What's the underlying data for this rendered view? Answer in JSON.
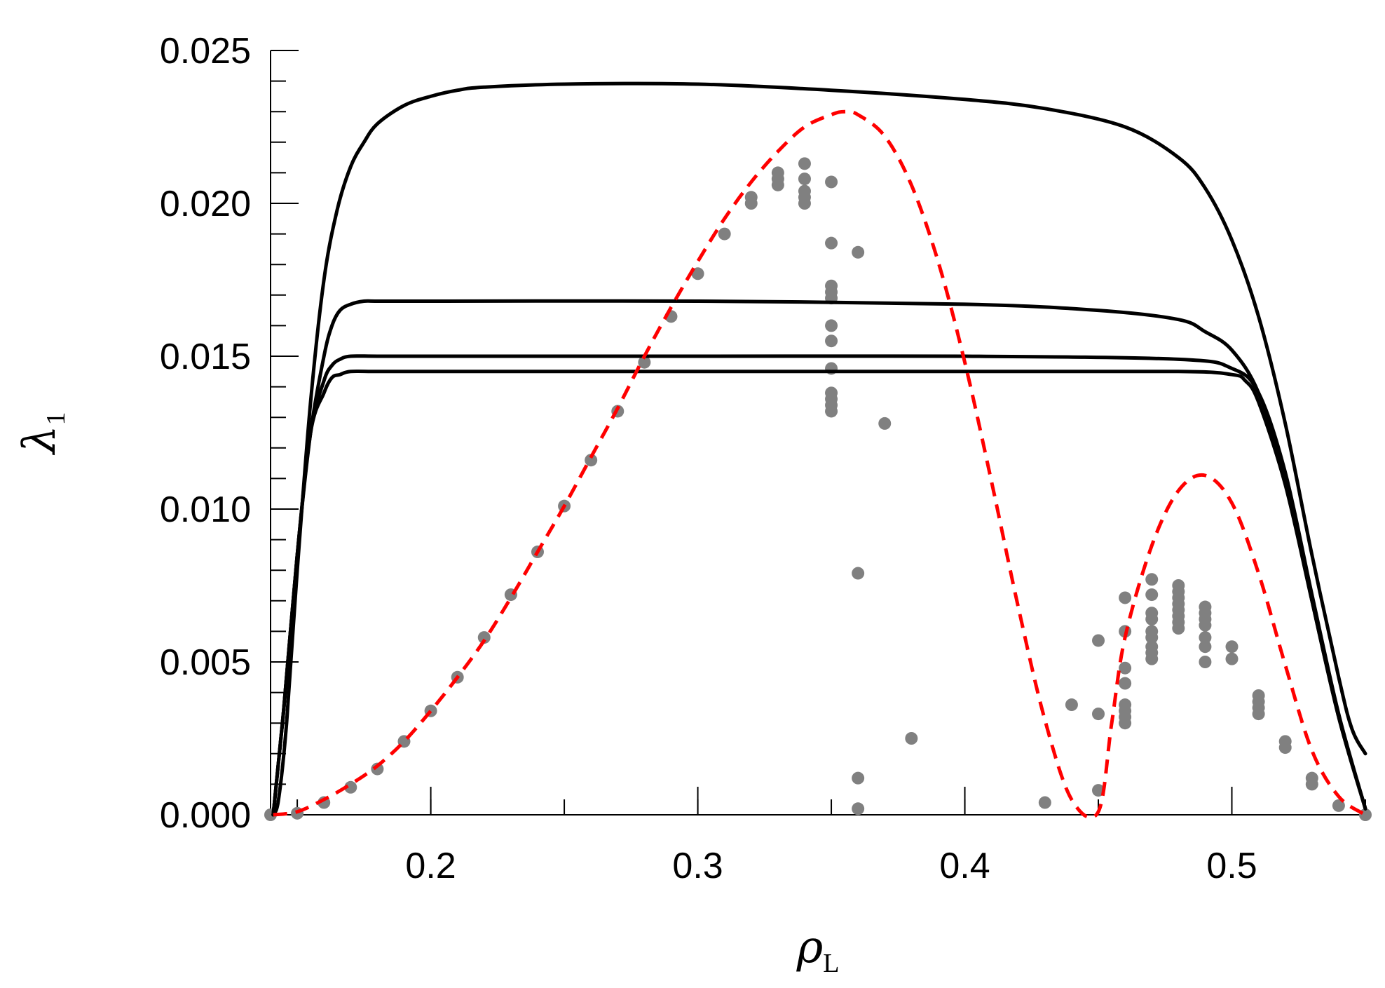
{
  "chart_data": {
    "type": "line",
    "title": "",
    "xlabel": "ρ",
    "xlabel_sub": "L",
    "ylabel": "λ",
    "ylabel_sub": "1",
    "xlim": [
      0.14,
      0.55
    ],
    "ylim": [
      0.0,
      0.025
    ],
    "x_ticks": [
      0.2,
      0.3,
      0.4,
      0.5
    ],
    "x_tick_labels": [
      "0.2",
      "0.3",
      "0.4",
      "0.5"
    ],
    "y_ticks": [
      0.0,
      0.005,
      0.01,
      0.015,
      0.02,
      0.025
    ],
    "y_tick_labels": [
      "0.000",
      "0.005",
      "0.010",
      "0.015",
      "0.020",
      "0.025"
    ],
    "grid": false,
    "series": [
      {
        "style": "solid-black",
        "x": [
          0.141,
          0.143,
          0.146,
          0.15,
          0.155,
          0.16,
          0.165,
          0.17,
          0.175,
          0.18,
          0.19,
          0.2,
          0.21,
          0.22,
          0.25,
          0.3,
          0.35,
          0.4,
          0.43,
          0.46,
          0.48,
          0.49,
          0.5,
          0.51,
          0.52,
          0.53,
          0.54,
          0.545,
          0.55
        ],
        "y": [
          0.0,
          0.0005,
          0.003,
          0.008,
          0.0135,
          0.0175,
          0.0198,
          0.0212,
          0.022,
          0.0226,
          0.0232,
          0.0235,
          0.0237,
          0.0238,
          0.0239,
          0.0239,
          0.0237,
          0.0234,
          0.0231,
          0.0225,
          0.0215,
          0.0205,
          0.0188,
          0.0163,
          0.0128,
          0.0085,
          0.0045,
          0.0028,
          0.002
        ]
      },
      {
        "style": "solid-black",
        "x": [
          0.141,
          0.145,
          0.15,
          0.155,
          0.16,
          0.163,
          0.166,
          0.17,
          0.175,
          0.18,
          0.2,
          0.3,
          0.4,
          0.45,
          0.48,
          0.49,
          0.5,
          0.51,
          0.52,
          0.53,
          0.54,
          0.55
        ],
        "y": [
          0.0,
          0.0035,
          0.0085,
          0.0125,
          0.015,
          0.016,
          0.0165,
          0.0167,
          0.0168,
          0.0168,
          0.0168,
          0.0168,
          0.0167,
          0.0165,
          0.0162,
          0.0158,
          0.0152,
          0.0138,
          0.011,
          0.007,
          0.0032,
          0.0002
        ]
      },
      {
        "style": "solid-black",
        "x": [
          0.141,
          0.145,
          0.15,
          0.155,
          0.16,
          0.163,
          0.166,
          0.17,
          0.18,
          0.2,
          0.3,
          0.4,
          0.48,
          0.5,
          0.51,
          0.52,
          0.53,
          0.54,
          0.55
        ],
        "y": [
          0.0,
          0.0035,
          0.0085,
          0.0125,
          0.0142,
          0.0147,
          0.0149,
          0.015,
          0.015,
          0.015,
          0.015,
          0.015,
          0.0149,
          0.0146,
          0.0138,
          0.0112,
          0.0072,
          0.0033,
          0.0002
        ]
      },
      {
        "style": "solid-black",
        "x": [
          0.141,
          0.145,
          0.15,
          0.155,
          0.16,
          0.163,
          0.166,
          0.17,
          0.18,
          0.2,
          0.3,
          0.4,
          0.48,
          0.5,
          0.505,
          0.51,
          0.52,
          0.53,
          0.54,
          0.55
        ],
        "y": [
          0.0,
          0.0035,
          0.0085,
          0.0125,
          0.0138,
          0.0143,
          0.0144,
          0.0145,
          0.0145,
          0.0145,
          0.0145,
          0.0145,
          0.0145,
          0.0144,
          0.0142,
          0.0135,
          0.0108,
          0.007,
          0.0032,
          0.0002
        ]
      },
      {
        "style": "dashed-red",
        "x": [
          0.141,
          0.15,
          0.16,
          0.17,
          0.18,
          0.19,
          0.2,
          0.21,
          0.22,
          0.23,
          0.24,
          0.25,
          0.26,
          0.27,
          0.28,
          0.29,
          0.3,
          0.31,
          0.32,
          0.33,
          0.34,
          0.35,
          0.355,
          0.36,
          0.37,
          0.38,
          0.39,
          0.4,
          0.41,
          0.42,
          0.43,
          0.44,
          0.45,
          0.455,
          0.46,
          0.47,
          0.48,
          0.49,
          0.5,
          0.51,
          0.52,
          0.53,
          0.54,
          0.55
        ],
        "y": [
          0.0,
          0.0001,
          0.0005,
          0.001,
          0.0016,
          0.0024,
          0.0034,
          0.0045,
          0.0057,
          0.0071,
          0.0086,
          0.0101,
          0.0117,
          0.0133,
          0.015,
          0.0166,
          0.0181,
          0.0195,
          0.0207,
          0.0217,
          0.0225,
          0.0229,
          0.023,
          0.0229,
          0.0222,
          0.0206,
          0.0181,
          0.0148,
          0.0109,
          0.0068,
          0.0031,
          0.0005,
          0.0001,
          0.003,
          0.0058,
          0.0088,
          0.0106,
          0.0111,
          0.0102,
          0.0079,
          0.0049,
          0.0021,
          0.0006,
          0.0
        ]
      }
    ],
    "scatter": {
      "color": "#808080",
      "points": [
        [
          0.14,
          0.0
        ],
        [
          0.15,
          5e-05
        ],
        [
          0.16,
          0.0004
        ],
        [
          0.17,
          0.0009
        ],
        [
          0.18,
          0.0015
        ],
        [
          0.19,
          0.0024
        ],
        [
          0.2,
          0.0034
        ],
        [
          0.21,
          0.0045
        ],
        [
          0.22,
          0.0058
        ],
        [
          0.23,
          0.0072
        ],
        [
          0.24,
          0.0086
        ],
        [
          0.25,
          0.0101
        ],
        [
          0.26,
          0.0116
        ],
        [
          0.27,
          0.0132
        ],
        [
          0.28,
          0.0148
        ],
        [
          0.29,
          0.0163
        ],
        [
          0.3,
          0.0177
        ],
        [
          0.31,
          0.019
        ],
        [
          0.32,
          0.02
        ],
        [
          0.32,
          0.0202
        ],
        [
          0.33,
          0.0206
        ],
        [
          0.33,
          0.0208
        ],
        [
          0.33,
          0.021
        ],
        [
          0.34,
          0.02
        ],
        [
          0.34,
          0.0202
        ],
        [
          0.34,
          0.0204
        ],
        [
          0.34,
          0.0208
        ],
        [
          0.34,
          0.0213
        ],
        [
          0.35,
          0.0207
        ],
        [
          0.35,
          0.0187
        ],
        [
          0.35,
          0.0173
        ],
        [
          0.35,
          0.0171
        ],
        [
          0.35,
          0.0169
        ],
        [
          0.35,
          0.016
        ],
        [
          0.35,
          0.0155
        ],
        [
          0.35,
          0.0146
        ],
        [
          0.35,
          0.0138
        ],
        [
          0.35,
          0.0136
        ],
        [
          0.35,
          0.0134
        ],
        [
          0.35,
          0.0132
        ],
        [
          0.36,
          0.0184
        ],
        [
          0.36,
          0.0079
        ],
        [
          0.36,
          0.0012
        ],
        [
          0.36,
          0.0002
        ],
        [
          0.37,
          0.0128
        ],
        [
          0.38,
          0.0025
        ],
        [
          0.43,
          0.0004
        ],
        [
          0.44,
          0.0036
        ],
        [
          0.45,
          0.0057
        ],
        [
          0.45,
          0.0033
        ],
        [
          0.45,
          0.0008
        ],
        [
          0.46,
          0.0071
        ],
        [
          0.46,
          0.006
        ],
        [
          0.46,
          0.0048
        ],
        [
          0.46,
          0.0043
        ],
        [
          0.46,
          0.0036
        ],
        [
          0.46,
          0.0034
        ],
        [
          0.46,
          0.0032
        ],
        [
          0.46,
          0.003
        ],
        [
          0.47,
          0.0077
        ],
        [
          0.47,
          0.0072
        ],
        [
          0.47,
          0.0066
        ],
        [
          0.47,
          0.0064
        ],
        [
          0.47,
          0.006
        ],
        [
          0.47,
          0.0058
        ],
        [
          0.47,
          0.0055
        ],
        [
          0.47,
          0.0053
        ],
        [
          0.47,
          0.0051
        ],
        [
          0.48,
          0.0075
        ],
        [
          0.48,
          0.0073
        ],
        [
          0.48,
          0.0071
        ],
        [
          0.48,
          0.0069
        ],
        [
          0.48,
          0.0067
        ],
        [
          0.48,
          0.0065
        ],
        [
          0.48,
          0.0063
        ],
        [
          0.48,
          0.0061
        ],
        [
          0.49,
          0.0068
        ],
        [
          0.49,
          0.0066
        ],
        [
          0.49,
          0.0064
        ],
        [
          0.49,
          0.0062
        ],
        [
          0.49,
          0.0058
        ],
        [
          0.49,
          0.0055
        ],
        [
          0.49,
          0.005
        ],
        [
          0.5,
          0.0055
        ],
        [
          0.5,
          0.0051
        ],
        [
          0.51,
          0.0039
        ],
        [
          0.51,
          0.0037
        ],
        [
          0.51,
          0.0035
        ],
        [
          0.51,
          0.0033
        ],
        [
          0.52,
          0.0024
        ],
        [
          0.52,
          0.0022
        ],
        [
          0.53,
          0.0012
        ],
        [
          0.53,
          0.001
        ],
        [
          0.54,
          0.0003
        ],
        [
          0.55,
          0.0
        ]
      ]
    }
  }
}
